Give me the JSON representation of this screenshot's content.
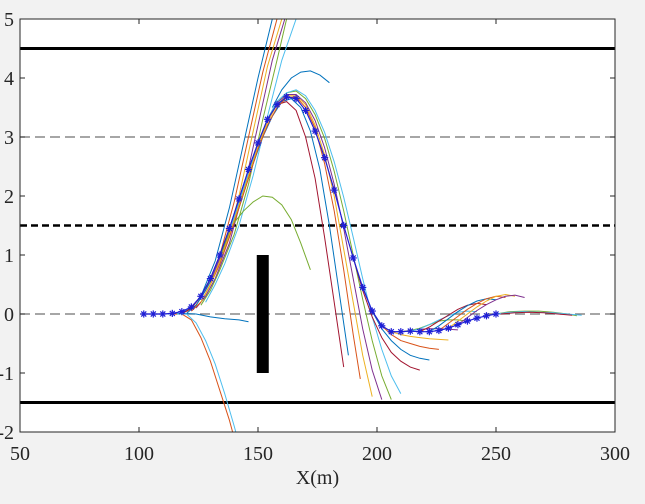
{
  "chart_data": {
    "type": "line",
    "title": "",
    "xlabel": "X(m)",
    "ylabel": "",
    "xlim": [
      50,
      300
    ],
    "ylim": [
      -2,
      5
    ],
    "xticks": [
      50,
      100,
      150,
      200,
      250,
      300
    ],
    "yticks": [
      -2,
      -1,
      0,
      1,
      2,
      3,
      4,
      5
    ],
    "xtick_labels": [
      "50",
      "100",
      "150",
      "200",
      "250",
      "300"
    ],
    "ytick_labels": [
      "-2",
      "-1",
      "0",
      "1",
      "2",
      "3",
      "4",
      "5"
    ],
    "grid": false,
    "reference_lines": [
      {
        "y": 4.5,
        "style": "solid-thick"
      },
      {
        "y": 3.0,
        "style": "dashed-thin"
      },
      {
        "y": 1.5,
        "style": "dashed-thick"
      },
      {
        "y": 0.0,
        "style": "dashed-thin"
      },
      {
        "y": -1.5,
        "style": "solid-thick"
      }
    ],
    "obstacle": {
      "x": 152,
      "y_from": -1,
      "y_to": 1
    },
    "reference_path": {
      "color": "#1f1fd6",
      "x": [
        102,
        106,
        110,
        114,
        118,
        122,
        126,
        130,
        134,
        138,
        142,
        146,
        150,
        154,
        158,
        162,
        166,
        170,
        174,
        178,
        182,
        186,
        190,
        194,
        198,
        202,
        206,
        210,
        214,
        218,
        222,
        226,
        230,
        234,
        238,
        242,
        246,
        250
      ],
      "y": [
        0.0,
        0.0,
        0.0,
        0.01,
        0.04,
        0.12,
        0.3,
        0.6,
        1.0,
        1.45,
        1.95,
        2.45,
        2.9,
        3.3,
        3.55,
        3.68,
        3.65,
        3.45,
        3.1,
        2.65,
        2.1,
        1.5,
        0.95,
        0.45,
        0.05,
        -0.2,
        -0.3,
        -0.3,
        -0.29,
        -0.3,
        -0.3,
        -0.28,
        -0.24,
        -0.18,
        -0.12,
        -0.07,
        -0.03,
        0.0
      ]
    },
    "trajectories": [
      {
        "color": "#0072bd",
        "x": [
          118,
          122,
          126,
          132,
          138,
          144,
          150,
          156,
          158
        ],
        "y": [
          0.02,
          0.1,
          0.3,
          0.9,
          1.8,
          2.9,
          4.0,
          5.0,
          5.6
        ]
      },
      {
        "color": "#d95319",
        "x": [
          120,
          124,
          128,
          134,
          140,
          146,
          152,
          158,
          160
        ],
        "y": [
          0.04,
          0.15,
          0.4,
          1.0,
          1.9,
          3.0,
          4.1,
          5.0,
          5.6
        ]
      },
      {
        "color": "#edb120",
        "x": [
          122,
          126,
          130,
          136,
          142,
          148,
          154,
          160,
          162
        ],
        "y": [
          0.06,
          0.2,
          0.5,
          1.1,
          2.0,
          3.1,
          4.2,
          5.0,
          5.6
        ]
      },
      {
        "color": "#7e2f8e",
        "x": [
          124,
          128,
          132,
          138,
          144,
          150,
          156,
          162,
          164
        ],
        "y": [
          0.1,
          0.3,
          0.6,
          1.2,
          2.1,
          3.2,
          4.3,
          5.1,
          5.6
        ]
      },
      {
        "color": "#77ac30",
        "x": [
          126,
          130,
          134,
          140,
          146,
          152,
          158,
          162,
          166
        ],
        "y": [
          0.15,
          0.4,
          0.75,
          1.35,
          2.2,
          3.3,
          4.3,
          5.0,
          5.6
        ]
      },
      {
        "color": "#4dbeee",
        "x": [
          128,
          132,
          136,
          142,
          148,
          154,
          160,
          166,
          170
        ],
        "y": [
          0.2,
          0.5,
          0.85,
          1.5,
          2.35,
          3.35,
          4.3,
          5.0,
          5.6
        ]
      },
      {
        "color": "#a2142f",
        "x": [
          118,
          122,
          126,
          130,
          134,
          138,
          142,
          146,
          150,
          154,
          158,
          162,
          166,
          170,
          174,
          178,
          182,
          186
        ],
        "y": [
          0.0,
          0.1,
          0.3,
          0.6,
          1.0,
          1.45,
          1.95,
          2.45,
          2.9,
          3.3,
          3.55,
          3.6,
          3.45,
          3.0,
          2.3,
          1.3,
          0.2,
          -0.9
        ]
      },
      {
        "color": "#0072bd",
        "x": [
          120,
          124,
          128,
          132,
          136,
          140,
          144,
          148,
          152,
          156,
          160,
          164,
          168,
          172,
          176,
          180,
          184,
          188
        ],
        "y": [
          0.01,
          0.15,
          0.4,
          0.7,
          1.1,
          1.55,
          2.05,
          2.55,
          3.0,
          3.35,
          3.6,
          3.65,
          3.5,
          3.1,
          2.45,
          1.5,
          0.4,
          -0.7
        ]
      },
      {
        "color": "#d95319",
        "x": [
          122,
          126,
          130,
          134,
          138,
          142,
          146,
          150,
          154,
          158,
          162,
          166,
          170,
          174,
          178,
          182,
          186,
          190,
          193
        ],
        "y": [
          0.05,
          0.2,
          0.5,
          0.85,
          1.3,
          1.8,
          2.3,
          2.8,
          3.2,
          3.5,
          3.67,
          3.68,
          3.5,
          3.15,
          2.55,
          1.75,
          0.75,
          -0.35,
          -1.1
        ]
      },
      {
        "color": "#edb120",
        "x": [
          126,
          130,
          134,
          138,
          142,
          146,
          150,
          154,
          158,
          162,
          166,
          170,
          174,
          178,
          182,
          186,
          190,
          194,
          198
        ],
        "y": [
          0.2,
          0.5,
          0.9,
          1.35,
          1.85,
          2.35,
          2.85,
          3.25,
          3.55,
          3.7,
          3.7,
          3.55,
          3.2,
          2.7,
          2.0,
          1.1,
          0.2,
          -0.7,
          -1.4
        ]
      },
      {
        "color": "#7e2f8e",
        "x": [
          130,
          134,
          138,
          142,
          146,
          150,
          154,
          158,
          162,
          166,
          170,
          174,
          178,
          182,
          186,
          190,
          194,
          198,
          202
        ],
        "y": [
          0.55,
          0.95,
          1.4,
          1.9,
          2.4,
          2.9,
          3.3,
          3.58,
          3.72,
          3.72,
          3.58,
          3.28,
          2.82,
          2.2,
          1.45,
          0.6,
          -0.25,
          -0.95,
          -1.45
        ]
      },
      {
        "color": "#77ac30",
        "x": [
          134,
          138,
          142,
          146,
          150,
          154,
          158,
          162,
          166,
          170,
          174,
          178,
          182,
          186,
          190,
          194,
          198,
          202,
          206
        ],
        "y": [
          0.95,
          1.4,
          1.9,
          2.4,
          2.9,
          3.3,
          3.6,
          3.75,
          3.78,
          3.65,
          3.38,
          2.98,
          2.42,
          1.75,
          1.0,
          0.25,
          -0.45,
          -1.05,
          -1.45
        ]
      },
      {
        "color": "#4dbeee",
        "x": [
          138,
          142,
          146,
          150,
          154,
          158,
          162,
          166,
          170,
          174,
          178,
          182,
          186,
          190,
          194,
          198,
          202,
          206,
          210
        ],
        "y": [
          1.4,
          1.9,
          2.4,
          2.9,
          3.3,
          3.6,
          3.75,
          3.8,
          3.7,
          3.45,
          3.08,
          2.58,
          1.98,
          1.3,
          0.6,
          -0.05,
          -0.6,
          -1.05,
          -1.35
        ]
      },
      {
        "color": "#a2142f",
        "x": [
          190,
          194,
          198,
          202,
          206,
          210,
          214,
          218
        ],
        "y": [
          0.95,
          0.4,
          -0.05,
          -0.4,
          -0.65,
          -0.8,
          -0.9,
          -0.95
        ]
      },
      {
        "color": "#0072bd",
        "x": [
          194,
          198,
          202,
          206,
          210,
          214,
          218,
          222
        ],
        "y": [
          0.45,
          0.05,
          -0.25,
          -0.45,
          -0.6,
          -0.7,
          -0.75,
          -0.78
        ]
      },
      {
        "color": "#d95319",
        "x": [
          198,
          202,
          206,
          210,
          214,
          218,
          222,
          226
        ],
        "y": [
          0.05,
          -0.2,
          -0.35,
          -0.45,
          -0.5,
          -0.55,
          -0.58,
          -0.6
        ]
      },
      {
        "color": "#edb120",
        "x": [
          202,
          206,
          210,
          214,
          218,
          222,
          226,
          230
        ],
        "y": [
          -0.2,
          -0.3,
          -0.35,
          -0.38,
          -0.4,
          -0.42,
          -0.43,
          -0.44
        ]
      },
      {
        "color": "#7e2f8e",
        "x": [
          206,
          210,
          214,
          218,
          222,
          226,
          230,
          234
        ],
        "y": [
          -0.3,
          -0.3,
          -0.28,
          -0.26,
          -0.25,
          -0.25,
          -0.26,
          -0.27
        ]
      },
      {
        "color": "#77ac30",
        "x": [
          210,
          214,
          218,
          222,
          226,
          230,
          234,
          238
        ],
        "y": [
          -0.3,
          -0.28,
          -0.24,
          -0.18,
          -0.12,
          -0.1,
          -0.1,
          -0.12
        ]
      },
      {
        "color": "#4dbeee",
        "x": [
          214,
          218,
          222,
          226,
          230,
          234,
          238,
          242
        ],
        "y": [
          -0.29,
          -0.25,
          -0.18,
          -0.1,
          -0.03,
          0.03,
          0.05,
          0.04
        ]
      },
      {
        "color": "#a2142f",
        "x": [
          218,
          222,
          226,
          230,
          234,
          238,
          242,
          246
        ],
        "y": [
          -0.3,
          -0.22,
          -0.12,
          -0.02,
          0.08,
          0.15,
          0.18,
          0.16
        ]
      },
      {
        "color": "#0072bd",
        "x": [
          222,
          226,
          230,
          234,
          238,
          242,
          246,
          250
        ],
        "y": [
          -0.3,
          -0.2,
          -0.08,
          0.04,
          0.14,
          0.22,
          0.26,
          0.24
        ]
      },
      {
        "color": "#d95319",
        "x": [
          226,
          230,
          234,
          238,
          242,
          246,
          250,
          254
        ],
        "y": [
          -0.28,
          -0.16,
          -0.04,
          0.08,
          0.18,
          0.26,
          0.3,
          0.28
        ]
      },
      {
        "color": "#edb120",
        "x": [
          230,
          234,
          238,
          242,
          246,
          250,
          254,
          258
        ],
        "y": [
          -0.24,
          -0.12,
          0.0,
          0.12,
          0.22,
          0.3,
          0.33,
          0.3
        ]
      },
      {
        "color": "#7e2f8e",
        "x": [
          234,
          238,
          242,
          246,
          250,
          254,
          258,
          262
        ],
        "y": [
          -0.18,
          -0.06,
          0.06,
          0.16,
          0.24,
          0.3,
          0.32,
          0.28
        ]
      },
      {
        "color": "#77ac30",
        "x": [
          250,
          256,
          262,
          268,
          274,
          280,
          284
        ],
        "y": [
          0.0,
          0.04,
          0.05,
          0.05,
          0.03,
          0.0,
          -0.03
        ]
      },
      {
        "color": "#4dbeee",
        "x": [
          250,
          256,
          262,
          268,
          274,
          280,
          286
        ],
        "y": [
          0.0,
          0.03,
          0.04,
          0.03,
          0.02,
          0.0,
          -0.02
        ]
      },
      {
        "color": "#a2142f",
        "x": [
          252,
          258,
          264,
          270,
          276,
          282
        ],
        "y": [
          0.0,
          0.02,
          0.03,
          0.02,
          0.0,
          -0.02
        ]
      },
      {
        "color": "#0072bd",
        "x": [
          112,
          118,
          124,
          130,
          136,
          142,
          146
        ],
        "y": [
          0.0,
          0.01,
          0.0,
          -0.05,
          -0.08,
          -0.1,
          -0.13
        ]
      },
      {
        "color": "#d95319",
        "x": [
          114,
          118,
          122,
          126,
          130,
          134,
          138,
          140
        ],
        "y": [
          0.0,
          0.0,
          -0.1,
          -0.4,
          -0.8,
          -1.3,
          -1.8,
          -2.1
        ]
      },
      {
        "color": "#4dbeee",
        "x": [
          116,
          120,
          124,
          128,
          132,
          136,
          140,
          142
        ],
        "y": [
          0.0,
          0.0,
          -0.15,
          -0.45,
          -0.85,
          -1.35,
          -1.9,
          -2.2
        ]
      },
      {
        "color": "#77ac30",
        "x": [
          140,
          144,
          148,
          152,
          156,
          160,
          164,
          168,
          172
        ],
        "y": [
          1.55,
          1.75,
          1.9,
          2.0,
          1.98,
          1.85,
          1.6,
          1.2,
          0.75
        ]
      },
      {
        "color": "#0072bd",
        "x": [
          156,
          160,
          164,
          168,
          172,
          176,
          180
        ],
        "y": [
          3.5,
          3.8,
          4.0,
          4.1,
          4.12,
          4.05,
          3.92
        ]
      }
    ]
  }
}
